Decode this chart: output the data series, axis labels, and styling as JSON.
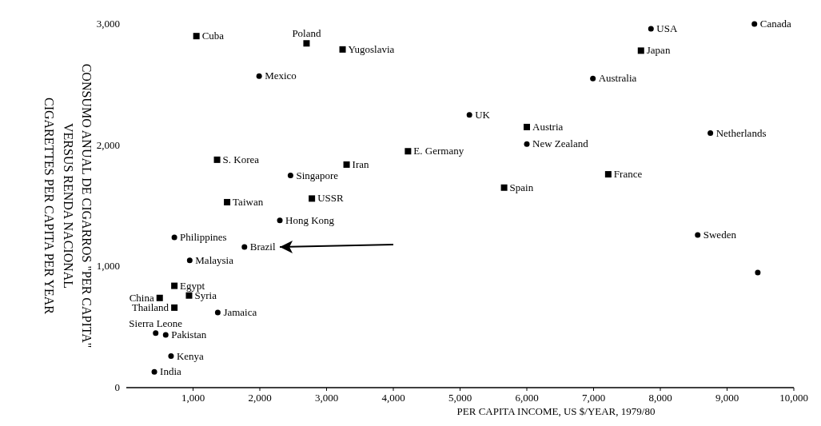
{
  "chart_data": {
    "type": "scatter",
    "title": "CONSUMO ANUAL DE CIGARROS \"PER CAPITA\"",
    "subtitle": "VERSUS RENDA NACIONAL",
    "ylabel": "CIGARETTES PER CAPITA PER YEAR",
    "xlabel": "PER CAPITA INCOME, US $/YEAR, 1979/80",
    "xlim": [
      0,
      10000
    ],
    "ylim": [
      0,
      3000
    ],
    "xticks": [
      {
        "value": 1000,
        "label": "1,000"
      },
      {
        "value": 2000,
        "label": "2,000"
      },
      {
        "value": 3000,
        "label": "3,000"
      },
      {
        "value": 4000,
        "label": "4,000"
      },
      {
        "value": 5000,
        "label": "5,000"
      },
      {
        "value": 6000,
        "label": "6,000"
      },
      {
        "value": 7000,
        "label": "7,000"
      },
      {
        "value": 8000,
        "label": "8,000"
      },
      {
        "value": 9000,
        "label": "9,000"
      },
      {
        "value": 10000,
        "label": "10,000"
      }
    ],
    "yticks": [
      0,
      {
        "value": 1000,
        "label": "1,000"
      },
      {
        "value": 2000,
        "label": "2,000"
      },
      {
        "value": 3000,
        "label": "3,000"
      }
    ],
    "grid": false,
    "series": [
      {
        "color": "#000000",
        "marker": "circle",
        "x": [
          1990,
          2460,
          2300,
          5140,
          6000,
          6990,
          7860,
          9410,
          8750,
          8560,
          9460,
          720,
          1770,
          950,
          1370,
          440,
          590,
          670,
          420
        ],
        "values": [
          2570,
          1750,
          1380,
          2250,
          2010,
          2550,
          2960,
          3000,
          2100,
          1260,
          950,
          1240,
          1160,
          1050,
          620,
          450,
          435,
          260,
          130
        ]
      },
      {
        "color": "#000000",
        "marker": "square",
        "x": [
          1050,
          2700,
          3240,
          1360,
          3300,
          4220,
          2780,
          1510,
          6000,
          5660,
          7220,
          7710,
          720,
          940,
          500,
          720
        ],
        "values": [
          2900,
          2840,
          2790,
          1880,
          1840,
          1950,
          1560,
          1530,
          2150,
          1650,
          1760,
          2780,
          840,
          760,
          740,
          660
        ]
      }
    ],
    "annotations": [
      {
        "text": "Cuba",
        "x": 1050,
        "y": 2900
      },
      {
        "text": "Poland",
        "x": 2700,
        "y": 2840
      },
      {
        "text": "Yugoslavia",
        "x": 3240,
        "y": 2790
      },
      {
        "text": "Mexico",
        "x": 1990,
        "y": 2570
      },
      {
        "text": "S. Korea",
        "x": 1360,
        "y": 1880
      },
      {
        "text": "Iran",
        "x": 3300,
        "y": 1840
      },
      {
        "text": "E. Germany",
        "x": 4220,
        "y": 1950
      },
      {
        "text": "Singapore",
        "x": 2460,
        "y": 1750
      },
      {
        "text": "USSR",
        "x": 2780,
        "y": 1560
      },
      {
        "text": "Taiwan",
        "x": 1510,
        "y": 1530
      },
      {
        "text": "Hong Kong",
        "x": 2300,
        "y": 1380
      },
      {
        "text": "UK",
        "x": 5140,
        "y": 2250
      },
      {
        "text": "Austria",
        "x": 6000,
        "y": 2150
      },
      {
        "text": "New Zealand",
        "x": 6000,
        "y": 2010
      },
      {
        "text": "Spain",
        "x": 5660,
        "y": 1650
      },
      {
        "text": "France",
        "x": 7220,
        "y": 1760
      },
      {
        "text": "Australia",
        "x": 6990,
        "y": 2550
      },
      {
        "text": "Japan",
        "x": 7710,
        "y": 2780
      },
      {
        "text": "USA",
        "x": 7860,
        "y": 2960
      },
      {
        "text": "Canada",
        "x": 9410,
        "y": 3000
      },
      {
        "text": "Netherlands",
        "x": 8750,
        "y": 2100
      },
      {
        "text": "Sweden",
        "x": 8560,
        "y": 1260
      },
      {
        "text": "Philippines",
        "x": 720,
        "y": 1240
      },
      {
        "text": "Brazil",
        "x": 1770,
        "y": 1160
      },
      {
        "text": "Malaysia",
        "x": 950,
        "y": 1050
      },
      {
        "text": "Egypt",
        "x": 720,
        "y": 840
      },
      {
        "text": "Syria",
        "x": 940,
        "y": 760
      },
      {
        "text": "China",
        "x": 500,
        "y": 740
      },
      {
        "text": "Thailand",
        "x": 720,
        "y": 660
      },
      {
        "text": "Jamaica",
        "x": 1370,
        "y": 620
      },
      {
        "text": "Sierra Leone",
        "x": 440,
        "y": 450
      },
      {
        "text": "Pakistan",
        "x": 590,
        "y": 435
      },
      {
        "text": "Kenya",
        "x": 670,
        "y": 260
      },
      {
        "text": "India",
        "x": 420,
        "y": 130
      }
    ]
  }
}
